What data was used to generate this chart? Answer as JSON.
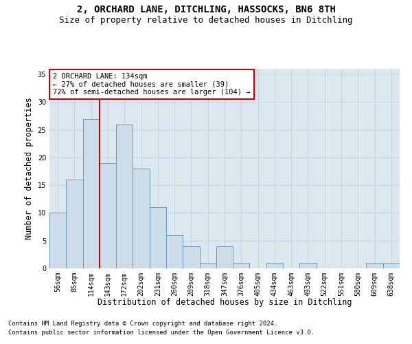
{
  "title1": "2, ORCHARD LANE, DITCHLING, HASSOCKS, BN6 8TH",
  "title2": "Size of property relative to detached houses in Ditchling",
  "xlabel": "Distribution of detached houses by size in Ditchling",
  "ylabel": "Number of detached properties",
  "bar_labels": [
    "56sqm",
    "85sqm",
    "114sqm",
    "143sqm",
    "172sqm",
    "202sqm",
    "231sqm",
    "260sqm",
    "289sqm",
    "318sqm",
    "347sqm",
    "376sqm",
    "405sqm",
    "434sqm",
    "463sqm",
    "493sqm",
    "522sqm",
    "551sqm",
    "580sqm",
    "609sqm",
    "638sqm"
  ],
  "bar_values": [
    10,
    16,
    27,
    19,
    26,
    18,
    11,
    6,
    4,
    1,
    4,
    1,
    0,
    1,
    0,
    1,
    0,
    0,
    0,
    1,
    1
  ],
  "bar_color": "#ccdce8",
  "bar_edgecolor": "#6699bb",
  "bar_linewidth": 0.7,
  "vline_color": "#cc0000",
  "vline_linewidth": 1.5,
  "annotation_text": "2 ORCHARD LANE: 134sqm\n← 27% of detached houses are smaller (39)\n72% of semi-detached houses are larger (104) →",
  "annotation_box_facecolor": "#ffffff",
  "annotation_box_edgecolor": "#cc0000",
  "ylim": [
    0,
    36
  ],
  "yticks": [
    0,
    5,
    10,
    15,
    20,
    25,
    30,
    35
  ],
  "grid_color": "#bbccd8",
  "bg_color": "#dce8f0",
  "footer1": "Contains HM Land Registry data © Crown copyright and database right 2024.",
  "footer2": "Contains public sector information licensed under the Open Government Licence v3.0.",
  "title1_fontsize": 10,
  "title2_fontsize": 9,
  "xlabel_fontsize": 8.5,
  "ylabel_fontsize": 8.5,
  "tick_fontsize": 7,
  "annotation_fontsize": 7.5,
  "footer_fontsize": 6.5
}
